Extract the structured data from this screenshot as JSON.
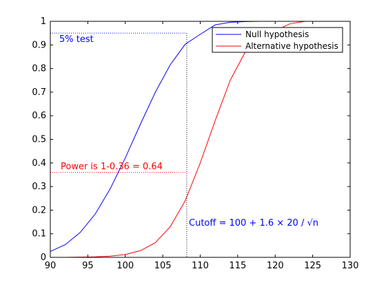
{
  "chart_data": {
    "type": "line",
    "xlim": [
      90,
      130
    ],
    "ylim": [
      0,
      1
    ],
    "x_ticks": [
      90,
      95,
      100,
      105,
      110,
      115,
      120,
      125,
      130
    ],
    "y_ticks": [
      0,
      0.1,
      0.2,
      0.3,
      0.4,
      0.5,
      0.6,
      0.7,
      0.8,
      0.9,
      1
    ],
    "x_tick_labels": [
      "90",
      "95",
      "100",
      "105",
      "110",
      "115",
      "120",
      "125",
      "130"
    ],
    "y_tick_labels": [
      "0",
      "0.1",
      "0.2",
      "0.3",
      "0.4",
      "0.5",
      "0.6",
      "0.7",
      "0.8",
      "0.9",
      "1"
    ],
    "grid": false,
    "legend_position": "top-right",
    "x": [
      90,
      92,
      94,
      96,
      98,
      100,
      102,
      104,
      106,
      108,
      110,
      112,
      114,
      116,
      118,
      120,
      122,
      124,
      126,
      128,
      130
    ],
    "series": [
      {
        "name": "Null hypothesis",
        "color": "#0000ff",
        "values": [
          0.025,
          0.054,
          0.106,
          0.184,
          0.291,
          0.421,
          0.563,
          0.699,
          0.816,
          0.903,
          0.945,
          0.985,
          0.996,
          0.999,
          1.0,
          1.0,
          1.0,
          1.0,
          1.0,
          1.0,
          1.0
        ]
      },
      {
        "name": "Alternative hypothesis",
        "color": "#ff0000",
        "values": [
          0.0,
          0.0,
          0.001,
          0.002,
          0.005,
          0.012,
          0.028,
          0.062,
          0.13,
          0.24,
          0.4,
          0.58,
          0.75,
          0.87,
          0.93,
          0.96,
          0.99,
          1.0,
          1.0,
          1.0,
          1.0
        ]
      }
    ],
    "reference_lines": {
      "cutoff_x": 108.2,
      "test_level_y": 0.95,
      "power_y": 0.36
    },
    "annotations": [
      {
        "text": "5% test",
        "color": "#0000ff"
      },
      {
        "text": "Power is 1-0.36 = 0.64",
        "color": "#ff0000"
      },
      {
        "text": "Cutoff = 100 + 1.6 × 20 / √n",
        "color": "#0000ff"
      }
    ]
  }
}
